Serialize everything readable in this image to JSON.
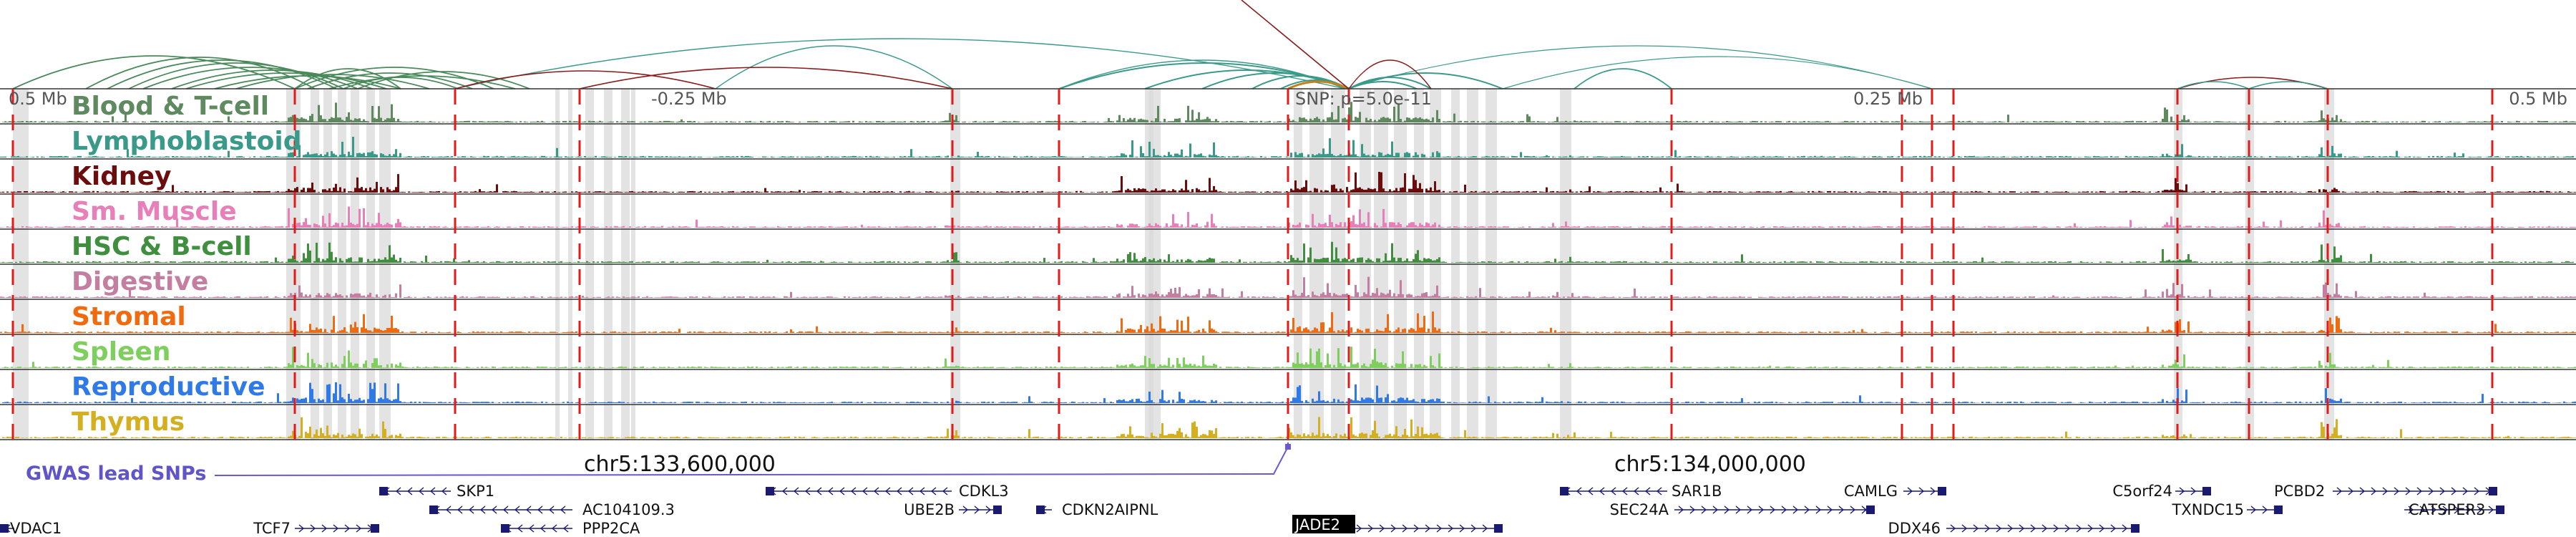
{
  "colors": {
    "background": "#ffffff",
    "highlight": "#d9d9d9",
    "eqtl_line": "#e01b1b",
    "gwas": "#6a5acd",
    "gene": "#1a1a6e"
  },
  "arcs": {
    "left_label": "0.5 Mb"
  },
  "axis": {
    "ticks": [
      {
        "label": "0.5 Mb"
      },
      {
        "label": "-0.25 Mb"
      },
      {
        "label": "SNP: p=5.0e-11"
      },
      {
        "label": "0.25 Mb"
      },
      {
        "label": "0.5 Mb"
      }
    ]
  },
  "tracks": [
    {
      "name": "Blood & T-cell",
      "color": "#5f8a5f"
    },
    {
      "name": "Lymphoblastoid",
      "color": "#3a9a8a"
    },
    {
      "name": "Kidney",
      "color": "#6b0d0d"
    },
    {
      "name": "Sm. Muscle",
      "color": "#e87fb8"
    },
    {
      "name": "HSC & B-cell",
      "color": "#3f8f3f"
    },
    {
      "name": "Digestive",
      "color": "#c47fa0"
    },
    {
      "name": "Stromal",
      "color": "#f06a0f"
    },
    {
      "name": "Spleen",
      "color": "#7fcf5f"
    },
    {
      "name": "Reproductive",
      "color": "#2f7ae8"
    },
    {
      "name": "Thymus",
      "color": "#d4b020"
    }
  ],
  "coordinates": {
    "left": "chr5:133,600,000",
    "right": "chr5:134,000,000"
  },
  "gwas": {
    "label": "GWAS lead SNPs"
  },
  "genes": [
    {
      "name": "SKP1"
    },
    {
      "name": "CDKL3"
    },
    {
      "name": "SAR1B"
    },
    {
      "name": "CAMLG"
    },
    {
      "name": "C5orf24"
    },
    {
      "name": "PCBD2"
    },
    {
      "name": "AC104109.3"
    },
    {
      "name": "UBE2B"
    },
    {
      "name": "CDKN2AIPNL"
    },
    {
      "name": "SEC24A"
    },
    {
      "name": "TXNDC15"
    },
    {
      "name": "CATSPER3"
    },
    {
      "name": "VDAC1"
    },
    {
      "name": "TCF7"
    },
    {
      "name": "PPP2CA"
    },
    {
      "name": "JADE2"
    },
    {
      "name": "DDX46"
    }
  ]
}
